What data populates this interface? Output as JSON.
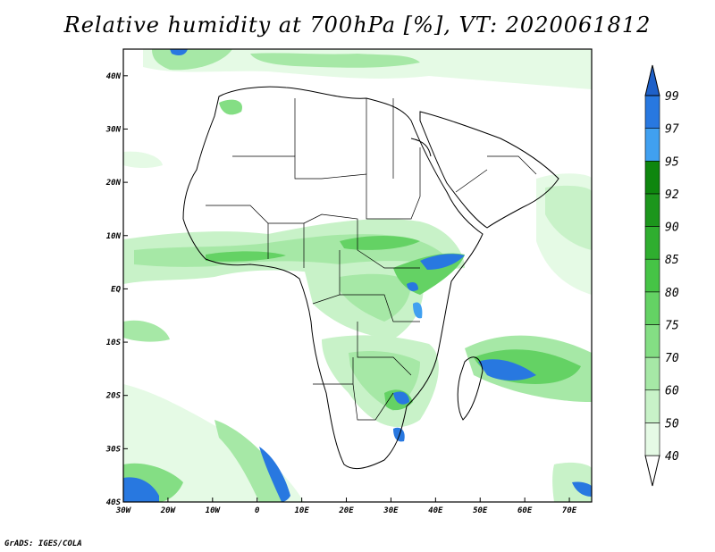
{
  "title": "Relative humidity at 700hPa [%], VT: 2020061812",
  "credit": "GrADS: IGES/COLA",
  "map": {
    "lon_range": [
      -30,
      75
    ],
    "lat_range": [
      -40,
      45
    ],
    "lon_ticks": [
      {
        "value": -30,
        "label": "30W"
      },
      {
        "value": -20,
        "label": "20W"
      },
      {
        "value": -10,
        "label": "10W"
      },
      {
        "value": 0,
        "label": "0"
      },
      {
        "value": 10,
        "label": "10E"
      },
      {
        "value": 20,
        "label": "20E"
      },
      {
        "value": 30,
        "label": "30E"
      },
      {
        "value": 40,
        "label": "40E"
      },
      {
        "value": 50,
        "label": "50E"
      },
      {
        "value": 60,
        "label": "60E"
      },
      {
        "value": 70,
        "label": "70E"
      }
    ],
    "lat_ticks": [
      {
        "value": 40,
        "label": "40N"
      },
      {
        "value": 30,
        "label": "30N"
      },
      {
        "value": 20,
        "label": "20N"
      },
      {
        "value": 10,
        "label": "10N"
      },
      {
        "value": 0,
        "label": "EQ"
      },
      {
        "value": -10,
        "label": "10S"
      },
      {
        "value": -20,
        "label": "20S"
      },
      {
        "value": -30,
        "label": "30S"
      },
      {
        "value": -40,
        "label": "40S"
      }
    ]
  },
  "colorbar": {
    "levels": [
      "40",
      "50",
      "60",
      "70",
      "75",
      "80",
      "85",
      "90",
      "92",
      "95",
      "97",
      "99"
    ],
    "colors": [
      "#ffffff",
      "#e5fae5",
      "#c8f2c8",
      "#a6e8a6",
      "#84de84",
      "#64d264",
      "#46c446",
      "#2fae2f",
      "#1c961c",
      "#0e860e",
      "#40a0f0",
      "#2878e0",
      "#1e60c8"
    ]
  }
}
